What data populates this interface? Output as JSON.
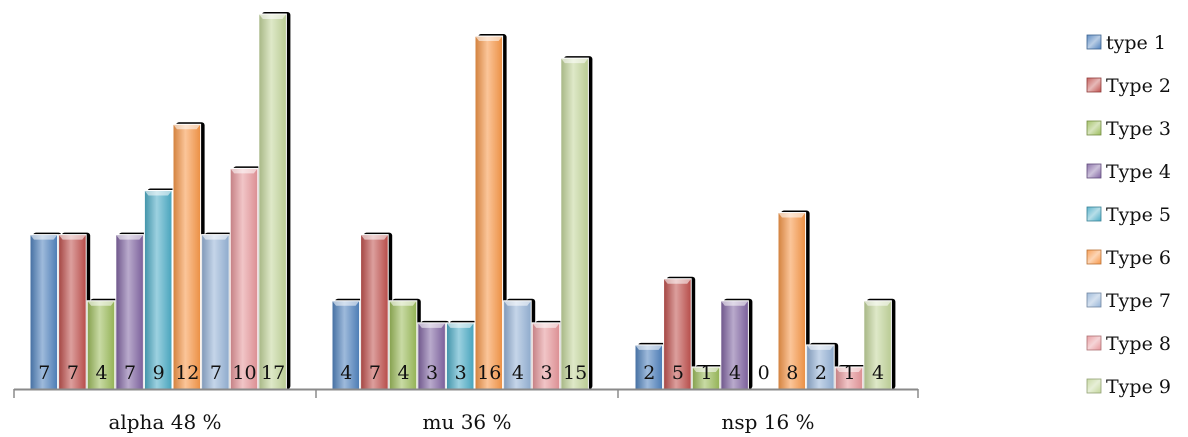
{
  "chart_data": {
    "type": "bar",
    "categories": [
      "alpha 48 %",
      "mu 36 %",
      "nsp 16 %"
    ],
    "series": [
      {
        "name": "type 1",
        "values": [
          7,
          4,
          2
        ],
        "color": "#4F81BD"
      },
      {
        "name": "Type 2",
        "values": [
          7,
          7,
          5
        ],
        "color": "#C0504D"
      },
      {
        "name": "Type 3",
        "values": [
          4,
          4,
          1
        ],
        "color": "#9BBB59"
      },
      {
        "name": "Type 4",
        "values": [
          7,
          3,
          4
        ],
        "color": "#8064A2"
      },
      {
        "name": "Type 5",
        "values": [
          9,
          3,
          0
        ],
        "color": "#4BACC6"
      },
      {
        "name": "Type 6",
        "values": [
          12,
          16,
          8
        ],
        "color": "#F79646"
      },
      {
        "name": "Type 7",
        "values": [
          7,
          4,
          2
        ],
        "color": "#95B3D7"
      },
      {
        "name": "Type 8",
        "values": [
          10,
          3,
          1
        ],
        "color": "#E6959A"
      },
      {
        "name": "Type 9",
        "values": [
          17,
          15,
          4
        ],
        "color": "#C3D69B"
      }
    ],
    "ylim": [
      0,
      17
    ],
    "grid": false,
    "legend": "right"
  }
}
